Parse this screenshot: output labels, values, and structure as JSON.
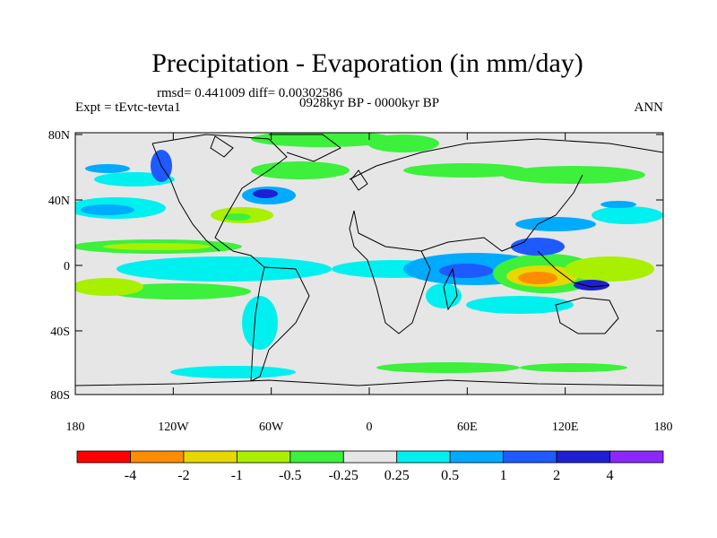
{
  "title": "Precipitation - Evaporation (in mm/day)",
  "stats": "rmsd= 0.441009 diff= 0.00302586",
  "left_label": "Expt = tEvtc-tevta1",
  "center_label": "0928kyr BP - 0000kyr BP",
  "right_label": "ANN",
  "lat_ticks": [
    "80N",
    "40N",
    "0",
    "40S",
    "80S"
  ],
  "lon_ticks": [
    "180",
    "120W",
    "60W",
    "0",
    "60E",
    "120E",
    "180"
  ],
  "colorbar": {
    "labels": [
      "-4",
      "-2",
      "-1",
      "-0.5",
      "-0.25",
      "0.25",
      "0.5",
      "1",
      "2",
      "4"
    ],
    "colors": [
      "#ff0000",
      "#ff8c00",
      "#e6d800",
      "#a8f000",
      "#3cf03c",
      "#e6e6e6",
      "#00f0f0",
      "#00aaff",
      "#1e5aff",
      "#1e1ed2",
      "#8c28ff"
    ]
  },
  "colors": {
    "ocean_neutral": "#e6e6e6",
    "coast": "#000000"
  }
}
